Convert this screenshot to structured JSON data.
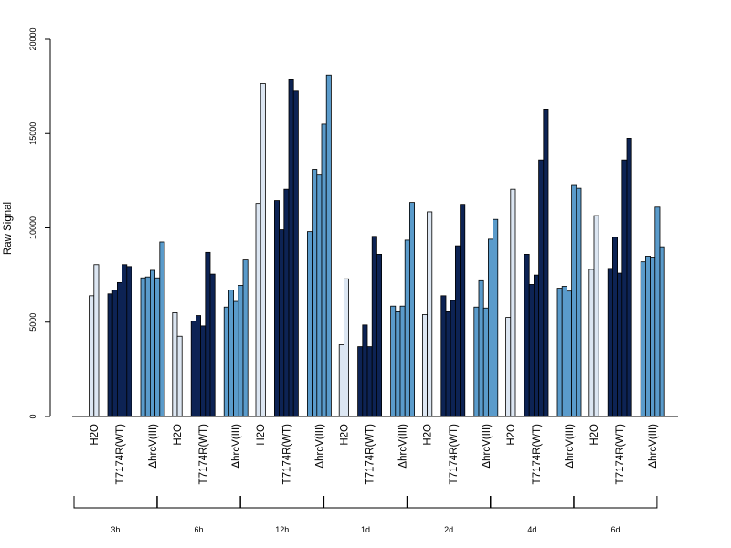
{
  "chart_data": {
    "type": "bar",
    "title": "",
    "xlabel": "",
    "ylabel": "Raw Signal",
    "ylim": [
      0,
      20000
    ],
    "yticks": [
      "0",
      "5000",
      "10000",
      "15000",
      "20000"
    ],
    "condition_labels": [
      "H2O",
      "T7174R(WT)",
      "ΔhrcV(III)"
    ],
    "groups": [
      {
        "label": "3h",
        "series": [
          {
            "values": [
              6400,
              8050
            ]
          },
          {
            "values": [
              6500,
              6700,
              7100,
              8050,
              7950
            ]
          },
          {
            "values": [
              7350,
              7400,
              7750,
              7350,
              9250
            ]
          }
        ]
      },
      {
        "label": "6h",
        "series": [
          {
            "values": [
              5500,
              4250
            ]
          },
          {
            "values": [
              5050,
              5350,
              4800,
              8700,
              7550
            ]
          },
          {
            "values": [
              5800,
              6700,
              6100,
              6950,
              8300
            ]
          }
        ]
      },
      {
        "label": "12h",
        "series": [
          {
            "values": [
              11300,
              17650
            ]
          },
          {
            "values": [
              11450,
              9900,
              12050,
              17850,
              17250
            ]
          },
          {
            "values": [
              9800,
              13100,
              12800,
              15500,
              18100
            ]
          }
        ]
      },
      {
        "label": "1d",
        "series": [
          {
            "values": [
              3800,
              7300
            ]
          },
          {
            "values": [
              3700,
              4850,
              3700,
              9550,
              8600
            ]
          },
          {
            "values": [
              5850,
              5550,
              5850,
              9350,
              11350
            ]
          }
        ]
      },
      {
        "label": "2d",
        "series": [
          {
            "values": [
              5400,
              10850
            ]
          },
          {
            "values": [
              6400,
              5550,
              6150,
              9050,
              11250
            ]
          },
          {
            "values": [
              5800,
              7200,
              5750,
              9400,
              10450
            ]
          }
        ]
      },
      {
        "label": "4d",
        "series": [
          {
            "values": [
              5250,
              12050
            ]
          },
          {
            "values": [
              8600,
              7000,
              7500,
              13600,
              16300
            ]
          },
          {
            "values": [
              6800,
              6900,
              6650,
              12250,
              12100
            ]
          }
        ]
      },
      {
        "label": "6d",
        "series": [
          {
            "values": [
              7800,
              10650
            ]
          },
          {
            "values": [
              7850,
              9500,
              7600,
              13600,
              14750
            ]
          },
          {
            "values": [
              8200,
              8500,
              8450,
              11100,
              9000
            ]
          }
        ]
      }
    ],
    "colors": [
      "#dce6f2",
      "#0d2354",
      "#5a9bcb"
    ],
    "grid": false
  }
}
